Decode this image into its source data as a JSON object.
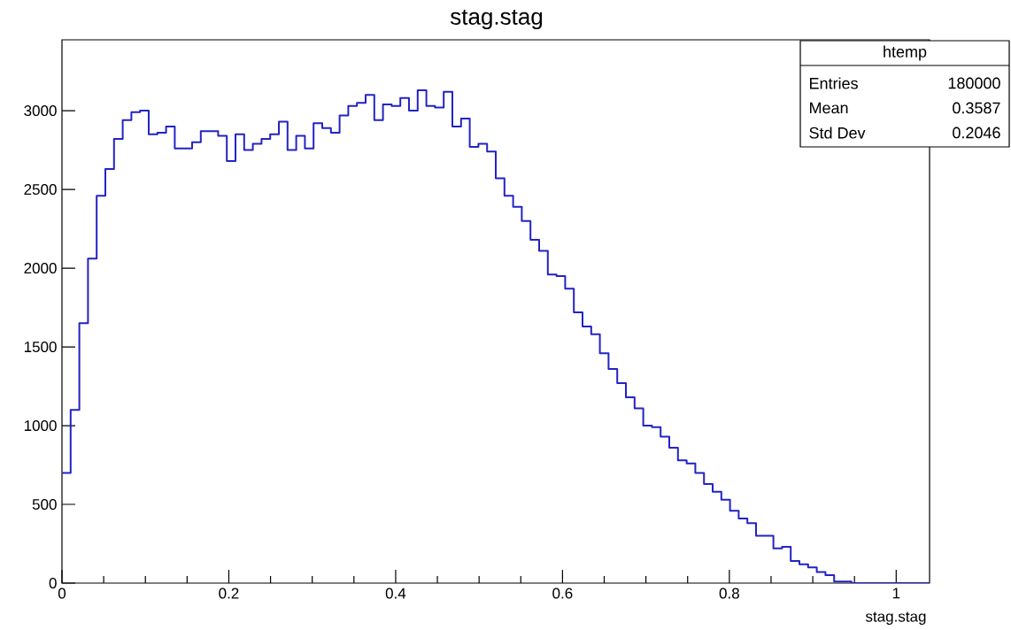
{
  "chart_data": {
    "type": "histogram",
    "title": "stag.stag",
    "xlabel": "stag.stag",
    "annotations": [
      "htemp",
      "Entries",
      "180000",
      "Mean",
      "0.3587",
      "Std Dev",
      "0.2046"
    ],
    "color": "#2323c4",
    "bins": [
      0,
      0.0104,
      0.0208,
      0.0312,
      0.0416,
      0.052,
      0.0624,
      0.0728,
      0.0832,
      0.0936,
      0.104,
      0.1144,
      0.1248,
      0.1352,
      0.1456,
      0.156,
      0.1664,
      0.1768,
      0.1872,
      0.1976,
      0.208,
      0.2184,
      0.2288,
      0.2392,
      0.2496,
      0.26,
      0.2704,
      0.2808,
      0.2912,
      0.3016,
      0.312,
      0.3224,
      0.3328,
      0.3432,
      0.3536,
      0.364,
      0.3744,
      0.3848,
      0.3952,
      0.4056,
      0.416,
      0.4264,
      0.4368,
      0.4472,
      0.4576,
      0.468,
      0.4784,
      0.4888,
      0.4992,
      0.5096,
      0.52,
      0.5304,
      0.5408,
      0.5512,
      0.5616,
      0.572,
      0.5824,
      0.5928,
      0.6032,
      0.6136,
      0.624,
      0.6344,
      0.6448,
      0.6552,
      0.6656,
      0.676,
      0.6864,
      0.6968,
      0.7072,
      0.7176,
      0.728,
      0.7384,
      0.7488,
      0.7592,
      0.7696,
      0.78,
      0.7904,
      0.8008,
      0.8112,
      0.8216,
      0.832,
      0.8424,
      0.8528,
      0.8632,
      0.8736,
      0.884,
      0.8944,
      0.9048,
      0.9152,
      0.9256,
      0.936,
      0.9464,
      0.9568,
      0.9672,
      0.9776,
      0.988,
      0.9984,
      1.0088,
      1.0192,
      1.0296,
      1.04
    ],
    "values": [
      700,
      1100,
      1650,
      2060,
      2460,
      2630,
      2820,
      2940,
      2990,
      3000,
      2850,
      2860,
      2900,
      2760,
      2760,
      2800,
      2870,
      2870,
      2840,
      2680,
      2850,
      2750,
      2790,
      2820,
      2850,
      2930,
      2750,
      2840,
      2760,
      2920,
      2890,
      2860,
      2970,
      3030,
      3050,
      3100,
      2940,
      3040,
      3030,
      3080,
      3000,
      3130,
      3030,
      3020,
      3120,
      2900,
      2950,
      2770,
      2790,
      2740,
      2570,
      2460,
      2390,
      2300,
      2180,
      2110,
      1960,
      1950,
      1870,
      1720,
      1630,
      1580,
      1460,
      1360,
      1270,
      1180,
      1110,
      1000,
      990,
      930,
      860,
      780,
      760,
      700,
      630,
      580,
      530,
      460,
      410,
      380,
      300,
      300,
      220,
      230,
      140,
      120,
      100,
      70,
      50,
      10,
      10,
      0,
      0,
      0,
      0,
      0,
      0,
      0,
      0,
      0
    ],
    "xlim": [
      0,
      1.04
    ],
    "ylim": [
      0,
      3450
    ],
    "xticks": [
      0,
      0.2,
      0.4,
      0.6,
      0.8,
      1
    ],
    "yticks": [
      0,
      500,
      1000,
      1500,
      2000,
      2500,
      3000
    ]
  }
}
